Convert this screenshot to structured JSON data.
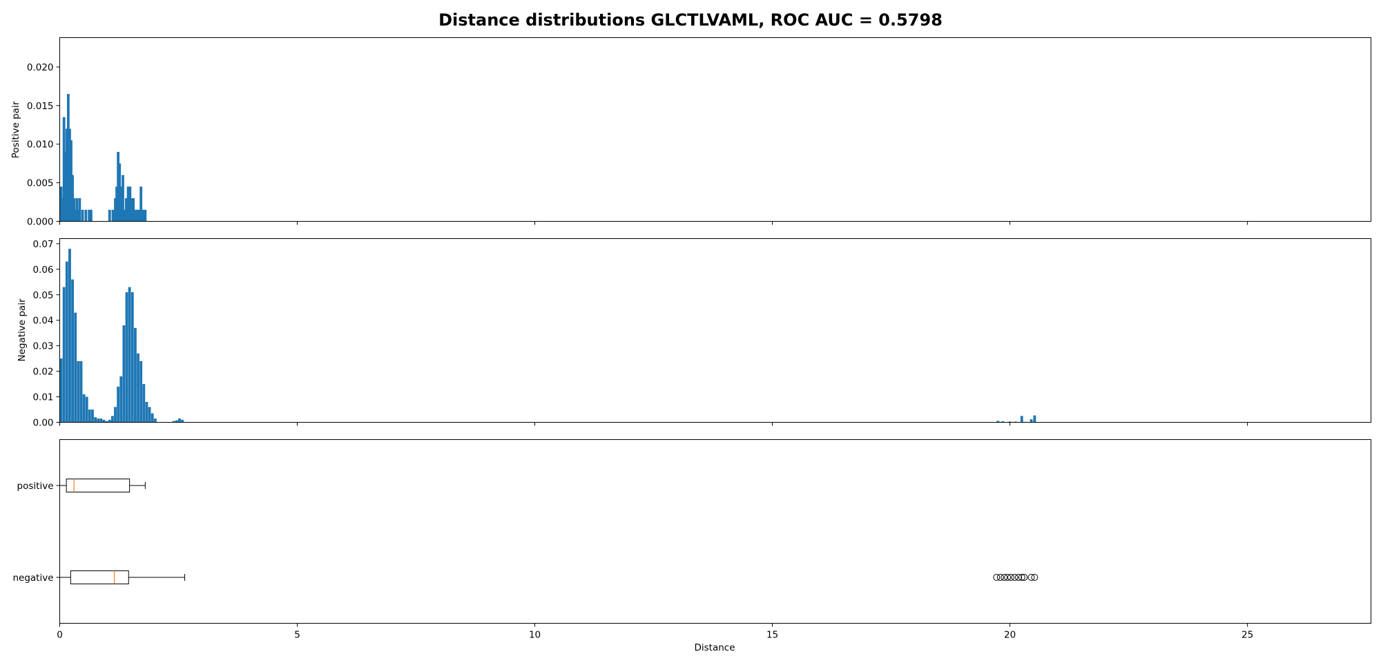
{
  "figure": {
    "title": "Distance distributions GLCTLVAML, ROC AUC = 0.5798"
  },
  "chart_data": [
    {
      "type": "bar",
      "panel": "positive-histogram",
      "ylabel": "Positive pair",
      "xlim": [
        0,
        27.6
      ],
      "ylim": [
        0,
        0.0238
      ],
      "yticks": [
        "0.000",
        "0.005",
        "0.010",
        "0.015",
        "0.020"
      ],
      "ytick_values": [
        0,
        0.005,
        0.01,
        0.015,
        0.02
      ],
      "color": "#1f77b4",
      "bin_width": 0.055,
      "bins": [
        [
          0.03,
          0.0045
        ],
        [
          0.06,
          0.003
        ],
        [
          0.09,
          0.0135
        ],
        [
          0.12,
          0.009
        ],
        [
          0.15,
          0.012
        ],
        [
          0.18,
          0.0165
        ],
        [
          0.21,
          0.012
        ],
        [
          0.24,
          0.0105
        ],
        [
          0.27,
          0.006
        ],
        [
          0.3,
          0.003
        ],
        [
          0.33,
          0.0015
        ],
        [
          0.36,
          0.003
        ],
        [
          0.39,
          0.0015
        ],
        [
          0.42,
          0.003
        ],
        [
          0.48,
          0.0015
        ],
        [
          0.55,
          0.0015
        ],
        [
          0.62,
          0.0015
        ],
        [
          0.66,
          0.0015
        ],
        [
          1.05,
          0.0015
        ],
        [
          1.12,
          0.0015
        ],
        [
          1.17,
          0.003
        ],
        [
          1.2,
          0.0045
        ],
        [
          1.23,
          0.009
        ],
        [
          1.26,
          0.0075
        ],
        [
          1.29,
          0.0045
        ],
        [
          1.33,
          0.006
        ],
        [
          1.36,
          0.0015
        ],
        [
          1.4,
          0.003
        ],
        [
          1.44,
          0.0045
        ],
        [
          1.48,
          0.0045
        ],
        [
          1.51,
          0.003
        ],
        [
          1.55,
          0.003
        ],
        [
          1.6,
          0.0015
        ],
        [
          1.64,
          0.0015
        ],
        [
          1.68,
          0.0015
        ],
        [
          1.71,
          0.0045
        ],
        [
          1.76,
          0.0015
        ],
        [
          1.8,
          0.0015
        ]
      ]
    },
    {
      "type": "bar",
      "panel": "negative-histogram",
      "ylabel": "Negative pair",
      "xlim": [
        0,
        27.6
      ],
      "ylim": [
        0,
        0.072
      ],
      "yticks": [
        "0.00",
        "0.01",
        "0.02",
        "0.03",
        "0.04",
        "0.05",
        "0.06",
        "0.07"
      ],
      "ytick_values": [
        0,
        0.01,
        0.02,
        0.03,
        0.04,
        0.05,
        0.06,
        0.07
      ],
      "color": "#1f77b4",
      "bin_width": 0.056,
      "bins": [
        [
          0.03,
          0.025
        ],
        [
          0.09,
          0.053
        ],
        [
          0.15,
          0.063
        ],
        [
          0.21,
          0.068
        ],
        [
          0.27,
          0.056
        ],
        [
          0.33,
          0.043
        ],
        [
          0.39,
          0.024
        ],
        [
          0.45,
          0.024
        ],
        [
          0.51,
          0.011
        ],
        [
          0.57,
          0.01
        ],
        [
          0.63,
          0.005
        ],
        [
          0.69,
          0.005
        ],
        [
          0.75,
          0.002
        ],
        [
          0.81,
          0.0015
        ],
        [
          0.87,
          0.0015
        ],
        [
          0.93,
          0.001
        ],
        [
          0.99,
          0.0005
        ],
        [
          1.05,
          0.001
        ],
        [
          1.11,
          0.0025
        ],
        [
          1.17,
          0.006
        ],
        [
          1.23,
          0.014
        ],
        [
          1.29,
          0.018
        ],
        [
          1.35,
          0.038
        ],
        [
          1.41,
          0.051
        ],
        [
          1.47,
          0.053
        ],
        [
          1.53,
          0.051
        ],
        [
          1.59,
          0.037
        ],
        [
          1.65,
          0.027
        ],
        [
          1.71,
          0.024
        ],
        [
          1.77,
          0.015
        ],
        [
          1.83,
          0.008
        ],
        [
          1.89,
          0.006
        ],
        [
          1.95,
          0.0035
        ],
        [
          2.01,
          0.0015
        ],
        [
          2.4,
          0.0005
        ],
        [
          2.46,
          0.0008
        ],
        [
          2.52,
          0.0015
        ],
        [
          2.58,
          0.001
        ],
        [
          19.75,
          0.0006
        ],
        [
          19.85,
          0.0004
        ],
        [
          20.0,
          0.0003
        ],
        [
          20.12,
          0.0003
        ],
        [
          20.25,
          0.0025
        ],
        [
          20.33,
          0.0002
        ],
        [
          20.45,
          0.0012
        ],
        [
          20.52,
          0.0027
        ]
      ]
    },
    {
      "type": "box",
      "panel": "boxplot",
      "xlabel": "Distance",
      "xlim": [
        0,
        27.6
      ],
      "xticks": [
        "0",
        "5",
        "10",
        "15",
        "20",
        "25"
      ],
      "xtick_values": [
        0,
        5,
        10,
        15,
        20,
        25
      ],
      "median_color": "#ff7f0e",
      "series": [
        {
          "name": "positive",
          "whisker_low": 0.0,
          "q1": 0.14,
          "median": 0.3,
          "q3": 1.47,
          "whisker_high": 1.8,
          "outliers": []
        },
        {
          "name": "negative",
          "whisker_low": 0.0,
          "q1": 0.23,
          "median": 1.15,
          "q3": 1.45,
          "whisker_high": 2.63,
          "outliers": [
            19.72,
            19.8,
            19.88,
            19.95,
            20.02,
            20.1,
            20.18,
            20.25,
            20.3,
            20.45,
            20.52
          ]
        }
      ]
    }
  ]
}
